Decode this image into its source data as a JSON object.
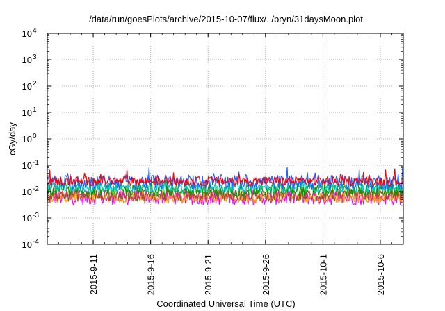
{
  "chart_data": {
    "type": "line",
    "title": "/data/run/goesPlots/archive/2015-10-07/flux/../bryn/31daysMoon.plot",
    "xlabel": "Coordinated Universal Time (UTC)",
    "ylabel": "cGy/day",
    "y_scale": "log",
    "ylim": [
      0.0001,
      10000
    ],
    "xlim": [
      "2015-09-07",
      "2015-10-08"
    ],
    "grid": true,
    "y_ticks": [
      {
        "value": 0.0001,
        "base": "10",
        "exp": "-4"
      },
      {
        "value": 0.001,
        "base": "10",
        "exp": "-3"
      },
      {
        "value": 0.01,
        "base": "10",
        "exp": "-2"
      },
      {
        "value": 0.1,
        "base": "10",
        "exp": "-1"
      },
      {
        "value": 1,
        "base": "10",
        "exp": "0"
      },
      {
        "value": 10,
        "base": "10",
        "exp": "1"
      },
      {
        "value": 100,
        "base": "10",
        "exp": "2"
      },
      {
        "value": 1000,
        "base": "10",
        "exp": "3"
      },
      {
        "value": 10000,
        "base": "10",
        "exp": "4"
      }
    ],
    "x_ticks": [
      "2015-9-11",
      "2015-9-16",
      "2015-9-21",
      "2015-9-26",
      "2015-10-1",
      "2015-10-6"
    ],
    "x_tick_values": [
      "2015-09-11",
      "2015-09-16",
      "2015-09-21",
      "2015-09-26",
      "2015-10-01",
      "2015-10-06"
    ],
    "series": [
      {
        "color": "#ff0000",
        "base": 0.021,
        "spread": 0.35,
        "spike": 0.0
      },
      {
        "color": "#2060ff",
        "base": 0.018,
        "spread": 0.55,
        "spike": 0.0
      },
      {
        "color": "#00c8c8",
        "base": 0.012,
        "spread": 0.35,
        "spike": 0.0
      },
      {
        "color": "#00a000",
        "base": 0.009,
        "spread": 0.45,
        "spike": 0.0
      },
      {
        "color": "#a05030",
        "base": 0.006,
        "spread": 0.45,
        "spike": 0.0
      },
      {
        "color": "#ffa000",
        "base": 0.005,
        "spread": 0.4,
        "spike": 0.0
      },
      {
        "color": "#ff00ff",
        "base": 0.0045,
        "spread": 0.55,
        "spike": 0.0
      }
    ]
  }
}
